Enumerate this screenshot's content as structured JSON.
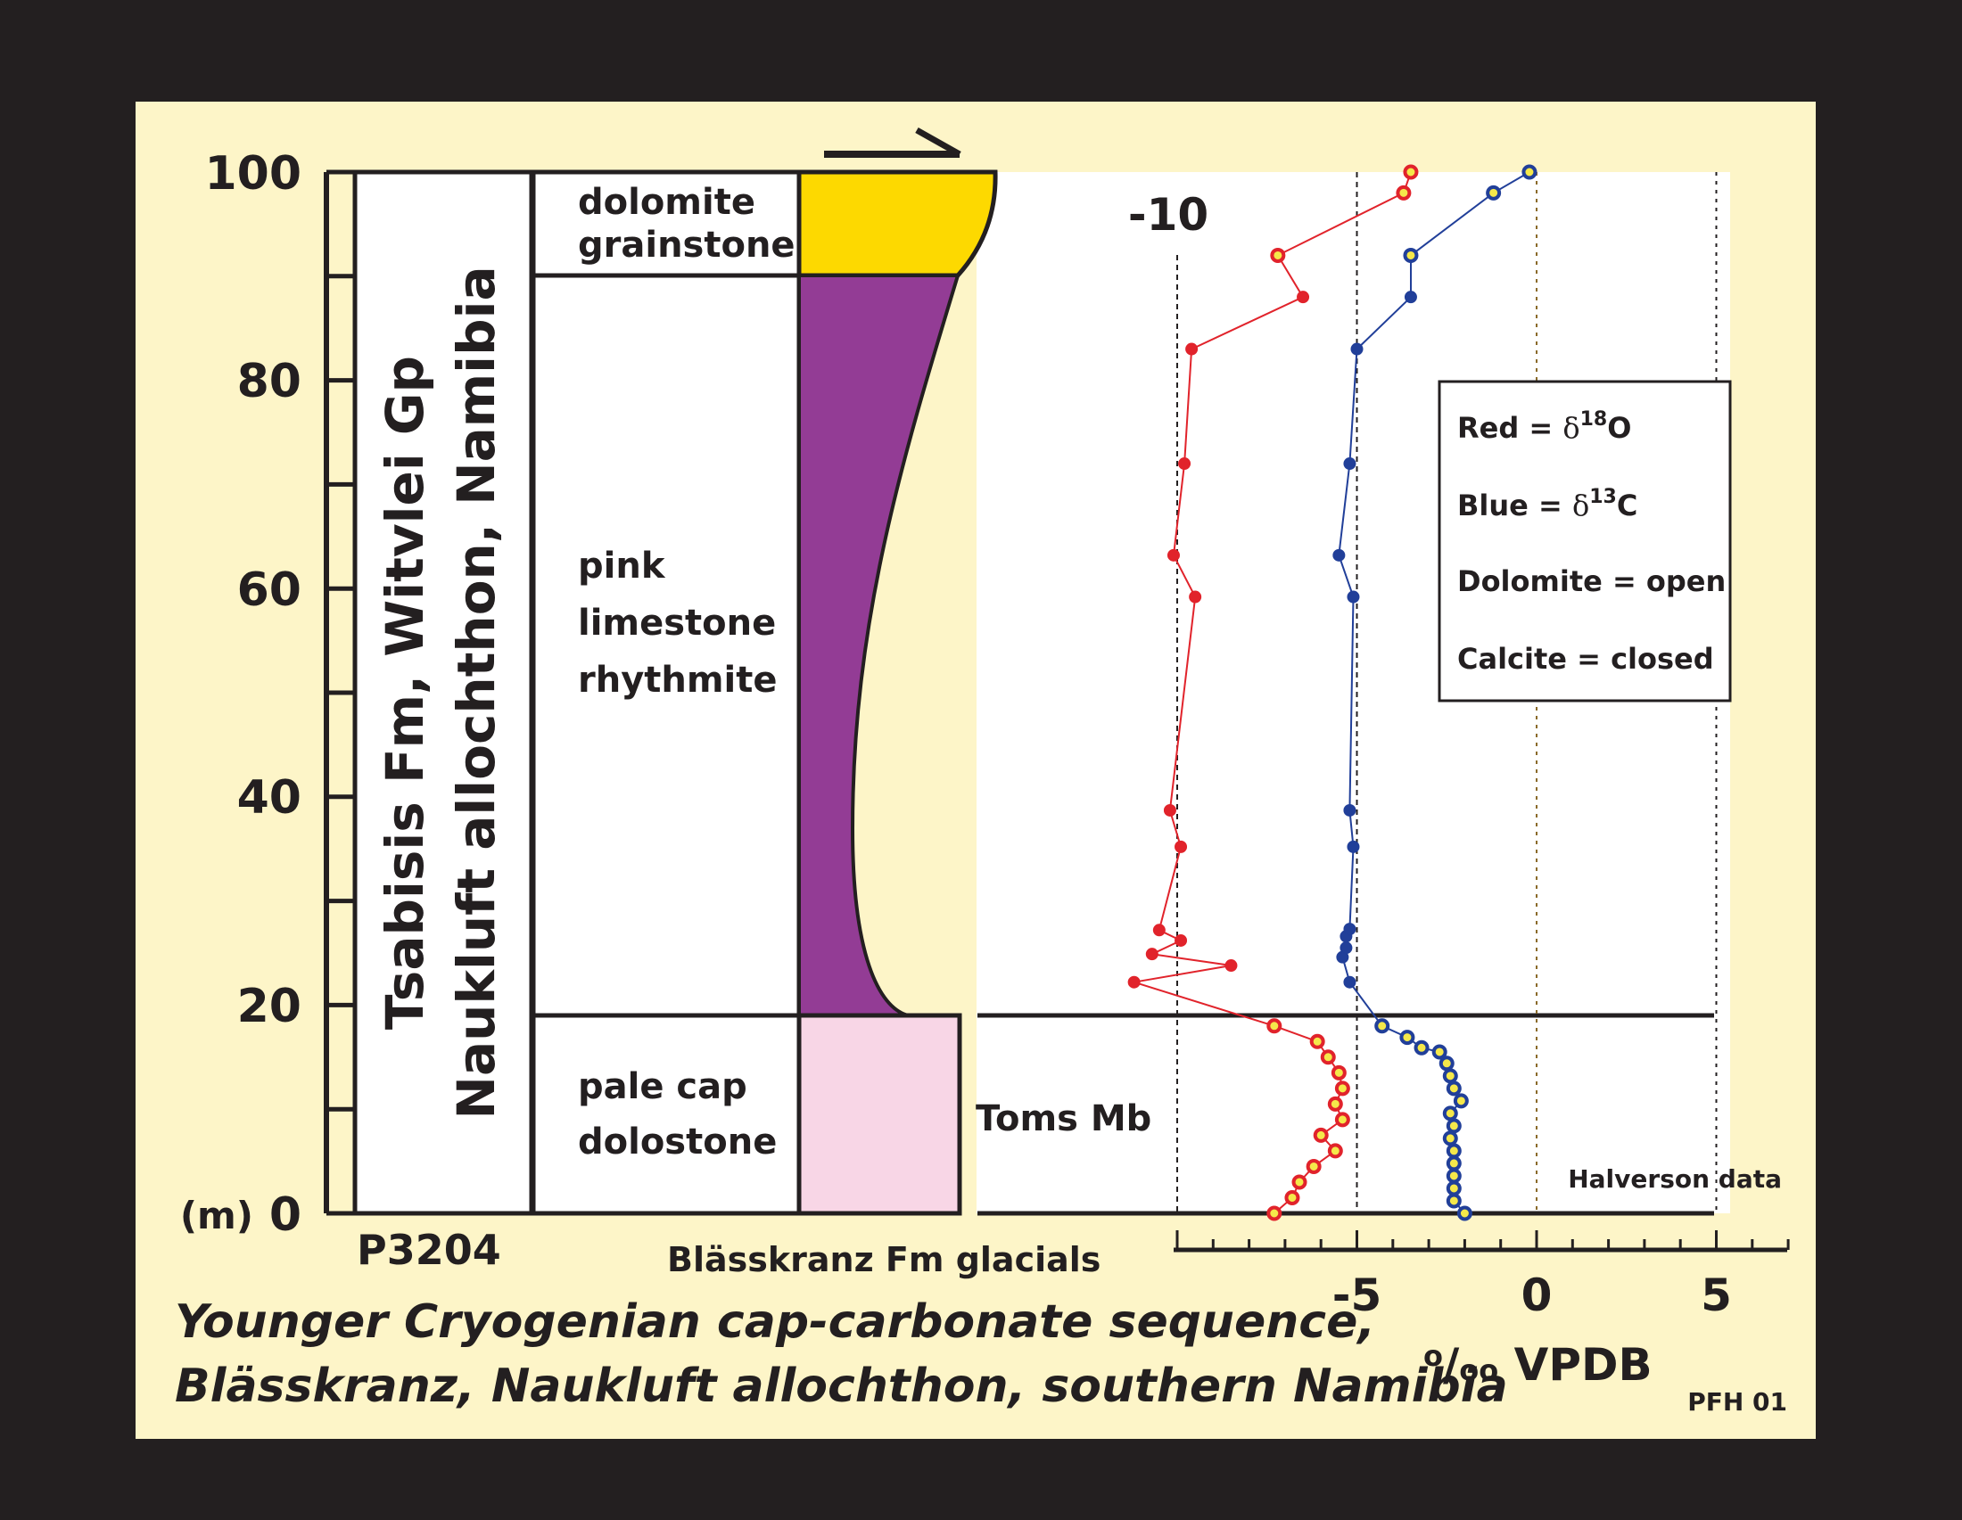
{
  "depth_axis": {
    "ticks": [
      "100",
      "80",
      "60",
      "40",
      "20",
      "0"
    ],
    "unit": "(m)",
    "min": 0,
    "max": 100
  },
  "column": {
    "vertical_title_1": "Tsabisis Fm, Witvlei Gp",
    "vertical_title_2": "Naukluft allochthon, Namibia",
    "section_id": "P3204"
  },
  "lithology": [
    {
      "label_lines": [
        "dolomite",
        "grainstone"
      ],
      "bottom_m": 90,
      "top_m": 100,
      "color": "#fdd900"
    },
    {
      "label_lines": [
        "pink",
        "limestone",
        "rhythmite"
      ],
      "bottom_m": 19,
      "top_m": 90,
      "color": "#933c95"
    },
    {
      "label_lines": [
        "pale cap",
        "dolostone"
      ],
      "bottom_m": 0,
      "top_m": 19,
      "color": "#f8d6e6"
    }
  ],
  "labels": {
    "glacials": "Blässkranz Fm glacials",
    "member": "Toms Mb",
    "halverson": "Halverson data",
    "caption_line1": "Younger Cryogenian cap-carbonate sequence,",
    "caption_line2": "Blässkranz, Naukluft allochthon, southern Namibia",
    "credit": "PFH 01",
    "x_tick_minus10": "-10"
  },
  "legend": {
    "red_label": "Red = ",
    "red_sym": "δ",
    "red_sup": "18",
    "red_el": "O",
    "blue_label": "Blue = ",
    "blue_sym": "δ",
    "blue_sup": "13",
    "blue_el": "C",
    "dolomite": "Dolomite = open",
    "calcite": "Calcite = closed"
  },
  "colors": {
    "background": "#fdf5c8",
    "frame": "#231f20",
    "red": "#e1232b",
    "blue": "#213f99",
    "open_fill": "#f5e84a"
  },
  "chart_data": {
    "type": "scatter",
    "xlabel_parts": [
      "o",
      "/",
      "oo",
      " VPDB"
    ],
    "ylabel": "(m)",
    "xlim": [
      -10,
      7
    ],
    "ylim": [
      0,
      100
    ],
    "x_ticks": [
      -5,
      0,
      5
    ],
    "series": [
      {
        "name": "δ18O",
        "color": "#e1232b",
        "points": [
          {
            "x": -7.3,
            "y": 0,
            "open": true
          },
          {
            "x": -6.8,
            "y": 1.5,
            "open": true
          },
          {
            "x": -6.6,
            "y": 3,
            "open": true
          },
          {
            "x": -6.2,
            "y": 4.5,
            "open": true
          },
          {
            "x": -5.6,
            "y": 6,
            "open": true
          },
          {
            "x": -6.0,
            "y": 7.5,
            "open": true
          },
          {
            "x": -5.4,
            "y": 9,
            "open": true
          },
          {
            "x": -5.6,
            "y": 10.5,
            "open": true
          },
          {
            "x": -5.4,
            "y": 12,
            "open": true
          },
          {
            "x": -5.5,
            "y": 13.5,
            "open": true
          },
          {
            "x": -5.8,
            "y": 15,
            "open": true
          },
          {
            "x": -6.1,
            "y": 16.5,
            "open": true
          },
          {
            "x": -7.3,
            "y": 18,
            "open": true
          },
          {
            "x": -11.2,
            "y": 22.2,
            "open": false
          },
          {
            "x": -8.5,
            "y": 23.8,
            "open": false
          },
          {
            "x": -10.7,
            "y": 24.9,
            "open": false
          },
          {
            "x": -9.9,
            "y": 26.2,
            "open": false
          },
          {
            "x": -10.5,
            "y": 27.2,
            "open": false
          },
          {
            "x": -9.9,
            "y": 35.2,
            "open": false
          },
          {
            "x": -10.2,
            "y": 38.7,
            "open": false
          },
          {
            "x": -9.5,
            "y": 59.2,
            "open": false
          },
          {
            "x": -10.1,
            "y": 63.2,
            "open": false
          },
          {
            "x": -9.8,
            "y": 72.0,
            "open": false
          },
          {
            "x": -9.6,
            "y": 83.0,
            "open": false
          },
          {
            "x": -6.5,
            "y": 88.0,
            "open": false
          },
          {
            "x": -7.2,
            "y": 92.0,
            "open": true
          },
          {
            "x": -3.7,
            "y": 98.0,
            "open": true
          },
          {
            "x": -3.5,
            "y": 100.0,
            "open": true
          }
        ]
      },
      {
        "name": "δ13C",
        "color": "#213f99",
        "points": [
          {
            "x": -2.0,
            "y": 0,
            "open": true
          },
          {
            "x": -2.3,
            "y": 1.2,
            "open": true
          },
          {
            "x": -2.3,
            "y": 2.4,
            "open": true
          },
          {
            "x": -2.3,
            "y": 3.6,
            "open": true
          },
          {
            "x": -2.3,
            "y": 4.8,
            "open": true
          },
          {
            "x": -2.3,
            "y": 6.0,
            "open": true
          },
          {
            "x": -2.4,
            "y": 7.2,
            "open": true
          },
          {
            "x": -2.3,
            "y": 8.4,
            "open": true
          },
          {
            "x": -2.4,
            "y": 9.6,
            "open": true
          },
          {
            "x": -2.1,
            "y": 10.8,
            "open": true
          },
          {
            "x": -2.3,
            "y": 12.0,
            "open": true
          },
          {
            "x": -2.4,
            "y": 13.2,
            "open": true
          },
          {
            "x": -2.5,
            "y": 14.4,
            "open": true
          },
          {
            "x": -2.7,
            "y": 15.5,
            "open": true
          },
          {
            "x": -3.2,
            "y": 15.9,
            "open": true
          },
          {
            "x": -3.6,
            "y": 16.9,
            "open": true
          },
          {
            "x": -4.3,
            "y": 18.0,
            "open": true
          },
          {
            "x": -5.2,
            "y": 22.2,
            "open": false
          },
          {
            "x": -5.4,
            "y": 24.6,
            "open": false
          },
          {
            "x": -5.3,
            "y": 25.5,
            "open": false
          },
          {
            "x": -5.3,
            "y": 26.6,
            "open": false
          },
          {
            "x": -5.2,
            "y": 27.3,
            "open": false
          },
          {
            "x": -5.1,
            "y": 35.2,
            "open": false
          },
          {
            "x": -5.2,
            "y": 38.7,
            "open": false
          },
          {
            "x": -5.1,
            "y": 59.2,
            "open": false
          },
          {
            "x": -5.5,
            "y": 63.2,
            "open": false
          },
          {
            "x": -5.2,
            "y": 72.0,
            "open": false
          },
          {
            "x": -5.0,
            "y": 83.0,
            "open": false
          },
          {
            "x": -3.5,
            "y": 88.0,
            "open": false
          },
          {
            "x": -3.5,
            "y": 92.0,
            "open": true
          },
          {
            "x": -1.2,
            "y": 98.0,
            "open": true
          },
          {
            "x": -0.2,
            "y": 100.0,
            "open": true
          }
        ]
      }
    ]
  }
}
